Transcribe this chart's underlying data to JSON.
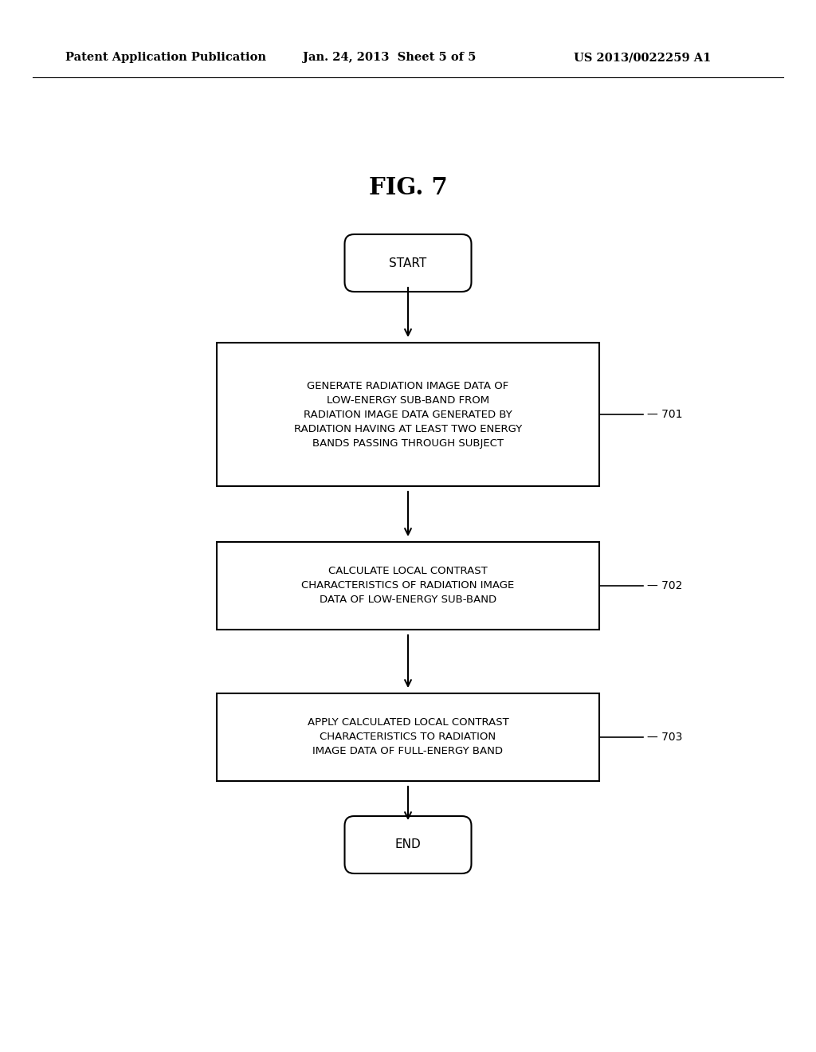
{
  "bg_color": "#ffffff",
  "header_left": "Patent Application Publication",
  "header_center": "Jan. 24, 2013  Sheet 5 of 5",
  "header_right": "US 2013/0022259 A1",
  "fig_label": "FIG. 7",
  "start_label": "START",
  "end_label": "END",
  "boxes": [
    {
      "id": "701",
      "label": "GENERATE RADIATION IMAGE DATA OF\nLOW-ENERGY SUB-BAND FROM\nRADIATION IMAGE DATA GENERATED BY\nRADIATION HAVING AT LEAST TWO ENERGY\nBANDS PASSING THROUGH SUBJECT",
      "ref": "701"
    },
    {
      "id": "702",
      "label": "CALCULATE LOCAL CONTRAST\nCHARACTERISTICS OF RADIATION IMAGE\nDATA OF LOW-ENERGY SUB-BAND",
      "ref": "702"
    },
    {
      "id": "703",
      "label": "APPLY CALCULATED LOCAL CONTRAST\nCHARACTERISTICS TO RADIATION\nIMAGE DATA OF FULL-ENERGY BAND",
      "ref": "703"
    }
  ],
  "text_color": "#000000",
  "box_edge_color": "#000000",
  "line_color": "#000000",
  "font_size_header": 10.5,
  "font_size_fig": 21,
  "font_size_box": 9.5,
  "font_size_oval": 11,
  "font_size_ref": 10
}
